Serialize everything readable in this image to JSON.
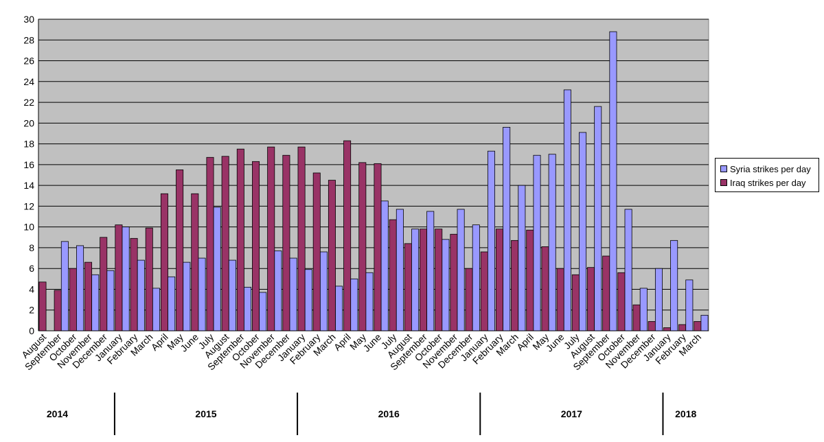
{
  "chart_data": {
    "type": "bar",
    "ylim": [
      0,
      30
    ],
    "y_ticks": [
      0,
      2,
      4,
      6,
      8,
      10,
      12,
      14,
      16,
      18,
      20,
      22,
      24,
      26,
      28,
      30
    ],
    "grid": "horizontal",
    "legend_position": "right",
    "categories": [
      "August",
      "September",
      "October",
      "November",
      "December",
      "January",
      "February",
      "March",
      "April",
      "May",
      "June",
      "July",
      "August",
      "September",
      "October",
      "November",
      "December",
      "January",
      "February",
      "March",
      "April",
      "May",
      "June",
      "July",
      "August",
      "September",
      "October",
      "November",
      "December",
      "January",
      "February",
      "March",
      "April",
      "May",
      "June",
      "July",
      "August",
      "September",
      "October",
      "November",
      "December",
      "January",
      "February",
      "March"
    ],
    "years": [
      {
        "label": "2014",
        "start": 0,
        "end": 4
      },
      {
        "label": "2015",
        "start": 5,
        "end": 16
      },
      {
        "label": "2016",
        "start": 17,
        "end": 28
      },
      {
        "label": "2017",
        "start": 29,
        "end": 40
      },
      {
        "label": "2018",
        "start": 41,
        "end": 43
      }
    ],
    "series": [
      {
        "name": "Syria strikes per day",
        "color": "#9999ff",
        "values": [
          0,
          8.6,
          8.2,
          5.4,
          5.8,
          10.0,
          6.8,
          4.1,
          5.2,
          6.6,
          7.0,
          11.9,
          6.8,
          4.2,
          3.7,
          7.7,
          7.0,
          5.9,
          7.6,
          4.3,
          5.0,
          5.6,
          12.5,
          11.7,
          9.8,
          11.5,
          8.8,
          11.7,
          10.2,
          17.3,
          19.6,
          14.0,
          16.9,
          17.0,
          23.2,
          19.1,
          21.6,
          28.8,
          11.7,
          4.1,
          6.0,
          8.7,
          4.9,
          1.5
        ]
      },
      {
        "name": "Iraq strikes per day",
        "color": "#993366",
        "values": [
          4.7,
          3.9,
          6.0,
          6.6,
          9.0,
          10.2,
          8.9,
          9.9,
          13.2,
          15.5,
          13.2,
          16.7,
          16.8,
          17.5,
          16.3,
          17.7,
          16.9,
          17.7,
          15.2,
          14.5,
          18.3,
          16.2,
          16.1,
          10.7,
          8.4,
          9.8,
          9.8,
          9.3,
          6.0,
          7.6,
          9.8,
          8.7,
          9.7,
          8.1,
          6.0,
          5.4,
          6.1,
          7.2,
          5.6,
          2.5,
          0.9,
          0.3,
          0.6,
          0.9
        ]
      }
    ]
  }
}
